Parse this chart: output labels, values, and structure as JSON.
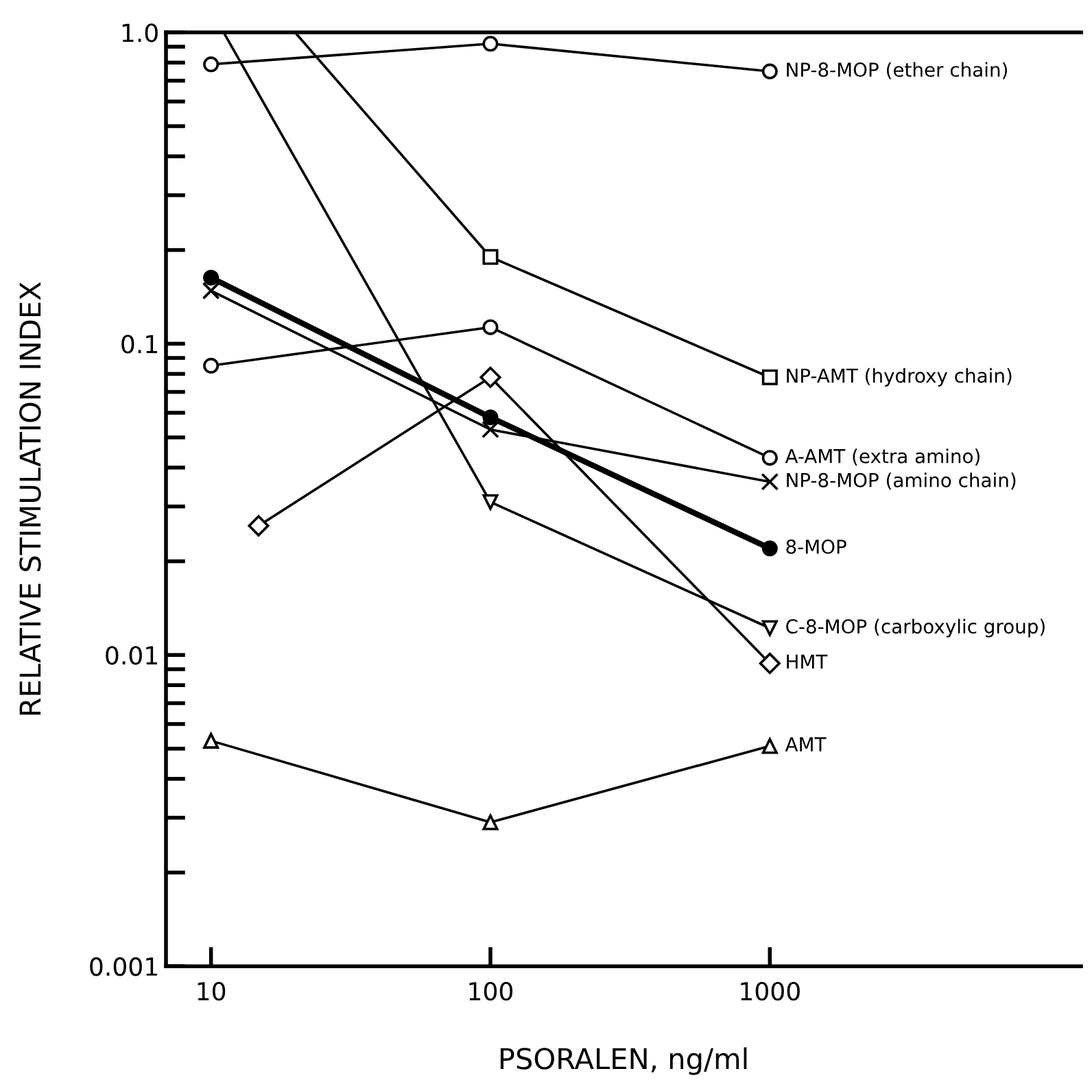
{
  "chart_data": {
    "type": "line",
    "xlabel": "PSORALEN, ng/ml",
    "ylabel": "RELATIVE STIMULATION INDEX",
    "log": "xy",
    "xlim": [
      6.9,
      13000
    ],
    "ylim": [
      0.001,
      1.0
    ],
    "xticks": [
      10,
      100,
      1000
    ],
    "yticks": [
      0.001,
      0.01,
      0.1,
      {
        "value": 1.0,
        "label": "1.0"
      }
    ],
    "grid": false,
    "legend": false,
    "series": [
      {
        "name": "NP-8-MOP (ether chain)",
        "color": "#000000",
        "marker": "circle",
        "x": [
          10,
          100,
          1000
        ],
        "values": [
          0.79,
          0.92,
          0.75
        ]
      },
      {
        "name": "NP-AMT (hydroxy chain)",
        "color": "#000000",
        "marker": "square",
        "x": [
          20,
          100,
          1000
        ],
        "values": [
          1.0,
          0.19,
          0.078
        ]
      },
      {
        "name": "A-AMT (extra amino)",
        "color": "#000000",
        "marker": "circle",
        "x": [
          10,
          100,
          1000
        ],
        "values": [
          0.085,
          0.113,
          0.043
        ]
      },
      {
        "name": "NP-8-MOP (amino chain)",
        "color": "#000000",
        "marker": "cross",
        "x": [
          10,
          100,
          1000
        ],
        "values": [
          0.148,
          0.053,
          0.036
        ]
      },
      {
        "name": "8-MOP",
        "color": "#000000",
        "marker": "circle",
        "x": [
          10,
          100,
          1000
        ],
        "values": [
          0.163,
          0.058,
          0.022
        ]
      },
      {
        "name": "C-8-MOP (carboxylic group)",
        "color": "#000000",
        "marker": "triangle_down",
        "x": [
          11.1,
          100,
          1000
        ],
        "values": [
          1.0,
          0.031,
          0.0122
        ]
      },
      {
        "name": "HMT",
        "color": "#000000",
        "marker": "diamond",
        "x": [
          14.8,
          100,
          1000
        ],
        "values": [
          0.026,
          0.078,
          0.0094
        ]
      },
      {
        "name": "AMT",
        "color": "#000000",
        "marker": "triangle",
        "x": [
          10,
          100,
          1000
        ],
        "values": [
          0.0053,
          0.0029,
          0.0051
        ]
      }
    ]
  }
}
